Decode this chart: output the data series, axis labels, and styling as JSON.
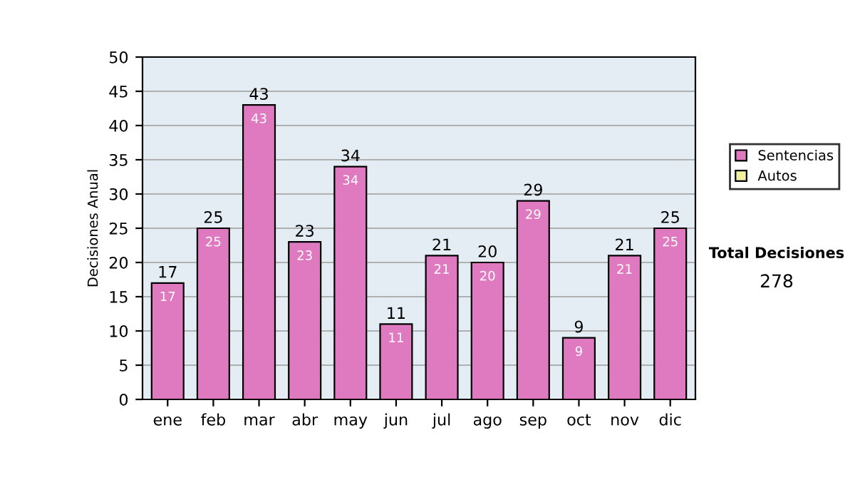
{
  "chart_data": {
    "type": "bar",
    "ylabel": "Decisiones Anual",
    "categories": [
      "ene",
      "feb",
      "mar",
      "abr",
      "may",
      "jun",
      "jul",
      "ago",
      "sep",
      "oct",
      "nov",
      "dic"
    ],
    "series": [
      {
        "name": "Sentencias",
        "color": "#e07ac0",
        "values": [
          17,
          25,
          43,
          23,
          34,
          11,
          21,
          20,
          29,
          9,
          21,
          25
        ],
        "value_labels": [
          "17",
          "25",
          "43",
          "23",
          "34",
          "11",
          "21",
          "20",
          "29",
          "9",
          "21",
          "25"
        ]
      },
      {
        "name": "Autos",
        "color": "#f0f0a0",
        "values": [
          null,
          null,
          null,
          null,
          null,
          null,
          null,
          null,
          null,
          null,
          null,
          null
        ]
      }
    ],
    "stacked": true,
    "totals": [
      "17",
      "25",
      "43",
      "23",
      "34",
      "11",
      "21",
      "20",
      "29",
      "9",
      "21",
      "25"
    ],
    "ylim": [
      0,
      50
    ],
    "yticks": [
      0,
      5,
      10,
      15,
      20,
      25,
      30,
      35,
      40,
      45,
      50
    ],
    "grid": "y",
    "legend": "right",
    "annotations": [
      "Total Decisiones",
      "278"
    ]
  }
}
